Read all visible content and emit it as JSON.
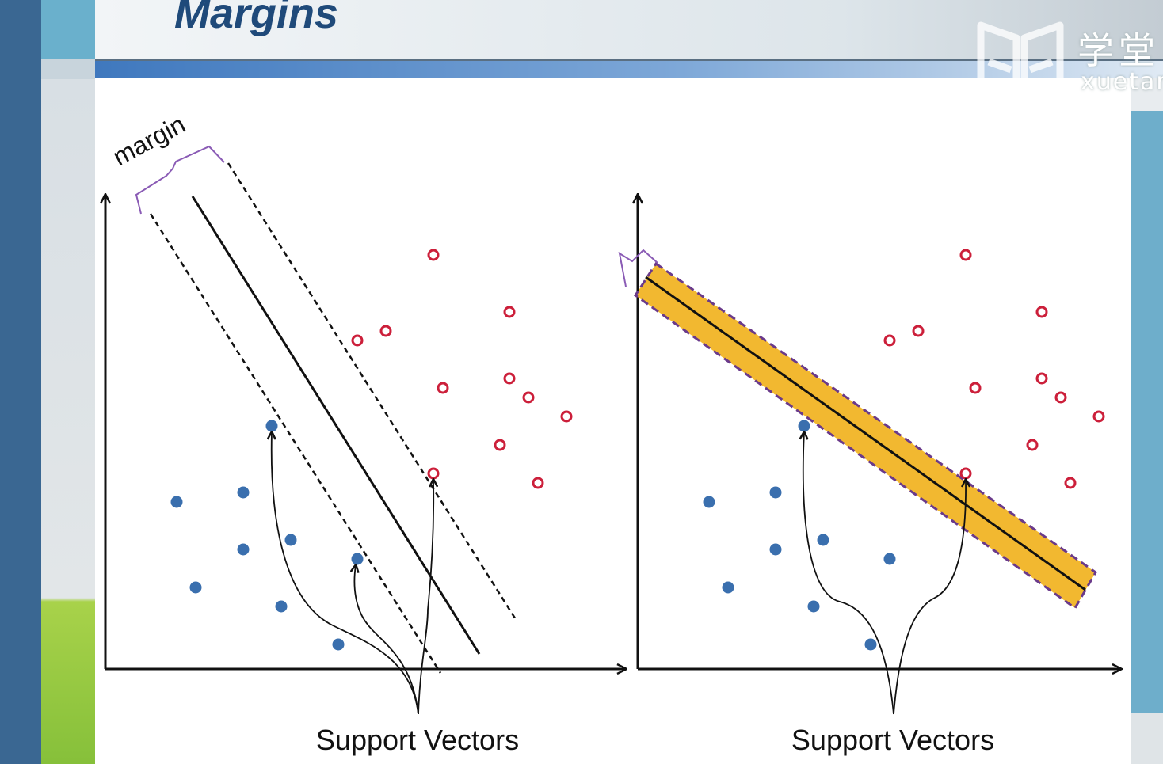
{
  "slide": {
    "title": "Margins",
    "watermark": {
      "cn": "学堂",
      "en": "xuetang"
    }
  },
  "left_panel": {
    "margin_label": "margin",
    "caption": "Support Vectors"
  },
  "right_panel": {
    "caption": "Support Vectors"
  },
  "colors": {
    "positive_class": "#cc1f3a",
    "negative_class": "#3a6fae",
    "margin_band": "#f2b830",
    "band_border": "#6a3a8a",
    "brace": "#8a5bb5"
  }
}
